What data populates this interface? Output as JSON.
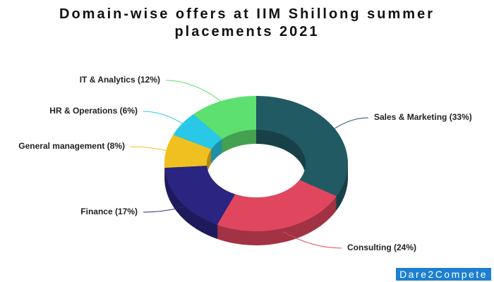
{
  "chart_data": {
    "type": "donut",
    "title": "Domain-wise offers at IIM Shillong summer placements 2021",
    "categories": [
      "Sales & Marketing",
      "Consulting",
      "Finance",
      "General management",
      "HR & Operations",
      "IT & Analytics"
    ],
    "values": [
      33,
      24,
      17,
      8,
      6,
      12
    ],
    "value_labels": [
      "(33%)",
      "(24%)",
      "(17%)",
      "(8%)",
      "(6%)",
      "(12%)"
    ],
    "colors": [
      "#225a63",
      "#e0475e",
      "#2a2580",
      "#f0c020",
      "#29c8e6",
      "#5ee070"
    ]
  },
  "watermark": "Dare2Compete"
}
